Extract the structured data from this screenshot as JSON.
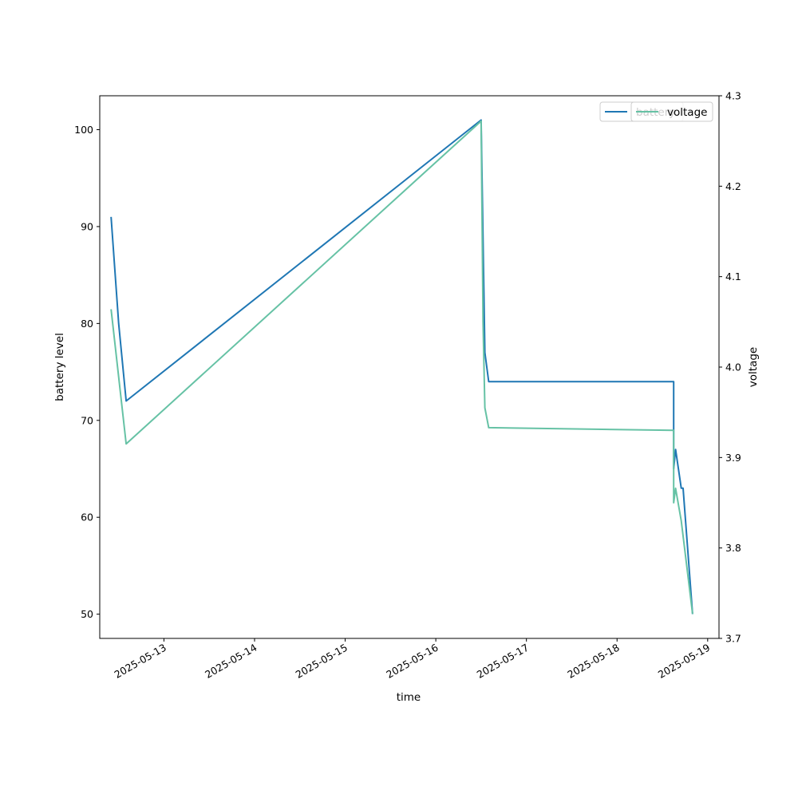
{
  "chart_data": {
    "type": "line",
    "title": "",
    "xlabel": "time",
    "ylabel_left": "battery level",
    "ylabel_right": "voltage",
    "x_ticks": [
      "2025-05-13",
      "2025-05-14",
      "2025-05-15",
      "2025-05-16",
      "2025-05-17",
      "2025-05-18",
      "2025-05-19"
    ],
    "xlim": [
      "2025-05-12T07:00",
      "2025-05-19T03:00"
    ],
    "ylim_left": [
      47.5,
      103.5
    ],
    "ylim_right": [
      3.7,
      4.3
    ],
    "y_ticks_left": [
      "50",
      "60",
      "70",
      "80",
      "90",
      "100"
    ],
    "y_ticks_right": [
      "3.7",
      "3.8",
      "3.9",
      "4.0",
      "4.1",
      "4.2",
      "4.3"
    ],
    "grid": false,
    "legend_position": "top-right",
    "series": [
      {
        "name": "battery",
        "axis": "left",
        "color": "#1f77b4",
        "points": [
          [
            "2025-05-12T10:00",
            91
          ],
          [
            "2025-05-12T12:00",
            80
          ],
          [
            "2025-05-12T14:00",
            72
          ],
          [
            "2025-05-16T12:00",
            101
          ],
          [
            "2025-05-16T13:00",
            77
          ],
          [
            "2025-05-16T14:00",
            74
          ],
          [
            "2025-05-18T15:00",
            74
          ],
          [
            "2025-05-18T15:00",
            65
          ],
          [
            "2025-05-18T15:30",
            67
          ],
          [
            "2025-05-18T17:00",
            63
          ],
          [
            "2025-05-18T17:30",
            63
          ],
          [
            "2025-05-18T20:00",
            50
          ]
        ]
      },
      {
        "name": "voltage",
        "axis": "right",
        "color": "#66c2a5",
        "points": [
          [
            "2025-05-12T10:00",
            4.064
          ],
          [
            "2025-05-12T14:00",
            3.915
          ],
          [
            "2025-05-16T12:00",
            4.272
          ],
          [
            "2025-05-16T12:30",
            4.05
          ],
          [
            "2025-05-16T13:00",
            3.955
          ],
          [
            "2025-05-16T14:00",
            3.933
          ],
          [
            "2025-05-18T15:00",
            3.93
          ],
          [
            "2025-05-18T15:00",
            3.85
          ],
          [
            "2025-05-18T15:30",
            3.866
          ],
          [
            "2025-05-18T17:00",
            3.83
          ],
          [
            "2025-05-18T20:00",
            3.727
          ]
        ]
      }
    ]
  }
}
